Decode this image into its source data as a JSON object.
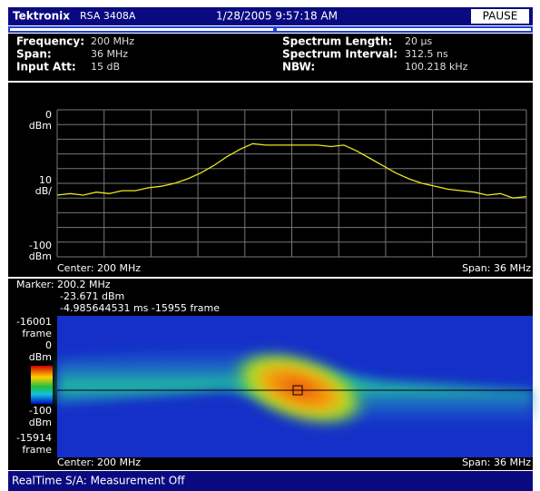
{
  "title_bar": {
    "brand": "Tektronix",
    "model": "RSA 3408A",
    "datetime": "1/28/2005 9:57:18 AM",
    "button": "PAUSE"
  },
  "settings": {
    "left": [
      {
        "label": "Frequency:",
        "value": "200 MHz"
      },
      {
        "label": "Span:",
        "value": "36 MHz"
      },
      {
        "label": "Input Att:",
        "value": "15 dB"
      }
    ],
    "right": [
      {
        "label": "Spectrum Length:",
        "value": "20 µs"
      },
      {
        "label": "Spectrum Interval:",
        "value": "312.5 ns"
      },
      {
        "label": "NBW:",
        "value": "100.218 kHz"
      }
    ]
  },
  "spectrum": {
    "type": "line",
    "top_label": [
      "0",
      "dBm"
    ],
    "scale_label": [
      "10",
      "dB/"
    ],
    "bottom_label": [
      "-100",
      "dBm"
    ],
    "center_label": "Center: 200 MHz",
    "span_label": "Span: 36 MHz",
    "xlim": [
      182,
      218
    ],
    "ylim": [
      -100,
      0
    ],
    "color": "#e8e820",
    "x": [
      182,
      183,
      184,
      185,
      186,
      187,
      188,
      189,
      190,
      191,
      192,
      193,
      194,
      195,
      196,
      197,
      198,
      199,
      200,
      201,
      202,
      203,
      204,
      205,
      206,
      207,
      208,
      209,
      210,
      211,
      212,
      213,
      214,
      215,
      216,
      217,
      218
    ],
    "values": [
      -58,
      -57,
      -58,
      -56,
      -57,
      -55,
      -55,
      -53,
      -52,
      -50,
      -47,
      -43,
      -38,
      -32,
      -27,
      -23,
      -24,
      -24,
      -24,
      -24,
      -24,
      -25,
      -24,
      -28,
      -33,
      -38,
      -43,
      -47,
      -50,
      -52,
      -54,
      -55,
      -56,
      -58,
      -57,
      -60,
      -59
    ]
  },
  "spectrogram": {
    "marker": [
      "Marker: 200.2 MHz",
      "-23.671 dBm",
      "-4.985644531 ms  -15955 frame"
    ],
    "top_frame": [
      "-16001",
      "frame"
    ],
    "color_top": [
      "0",
      "dBm"
    ],
    "color_bottom": [
      "-100",
      "dBm"
    ],
    "bottom_frame": [
      "-15914",
      "frame"
    ],
    "center_label": "Center: 200 MHz",
    "span_label": "Span: 36 MHz"
  },
  "status": "RealTime S/A: Measurement Off"
}
